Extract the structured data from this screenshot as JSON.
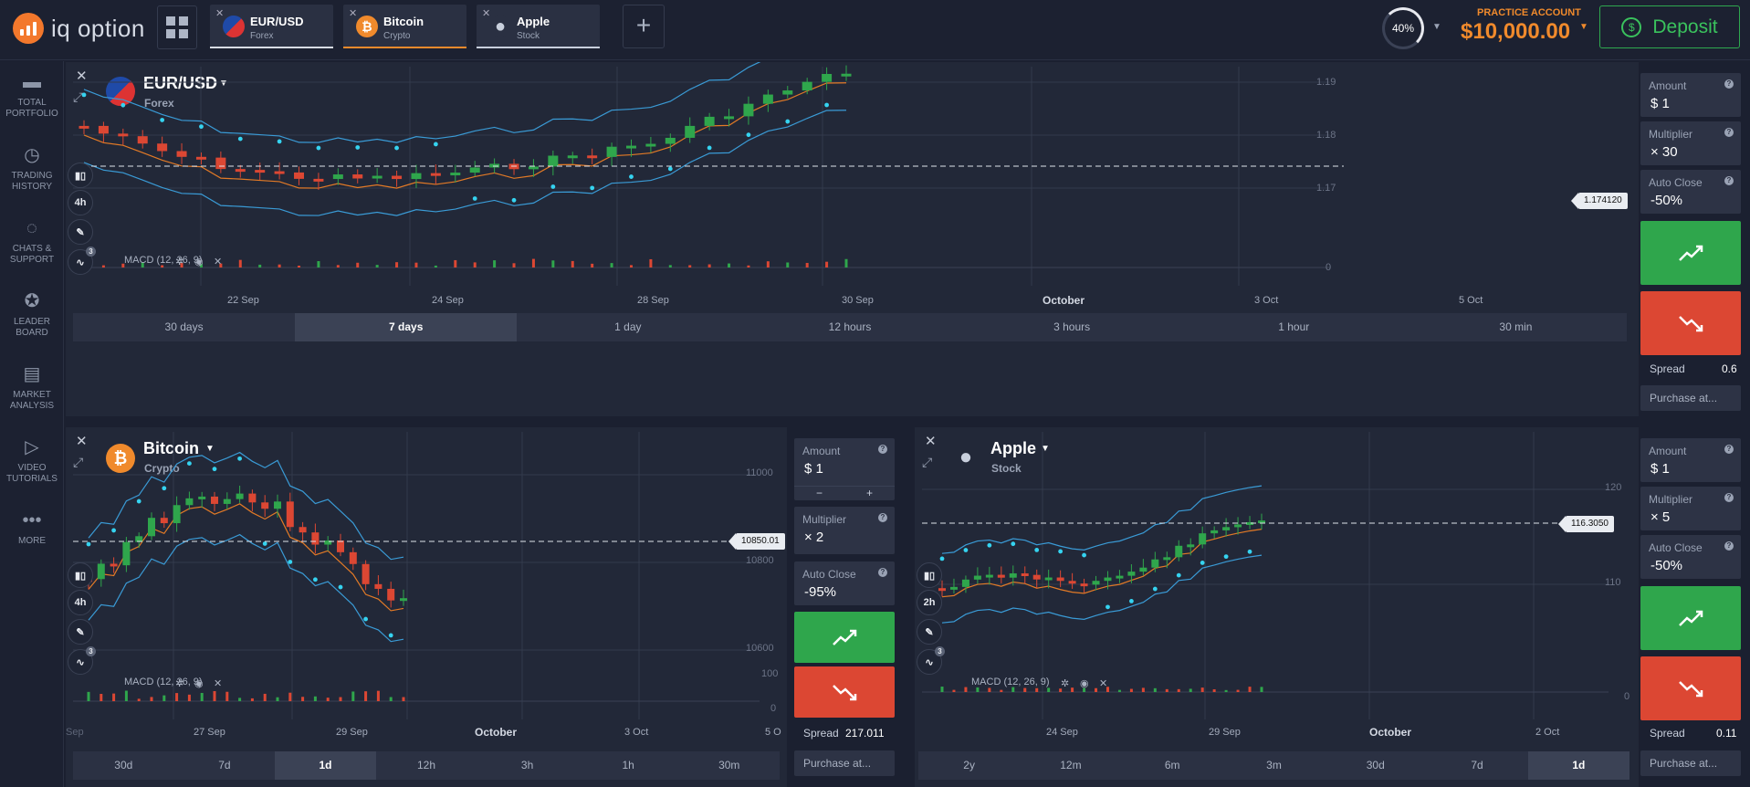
{
  "app": {
    "logo_text": "iq option"
  },
  "tabs": [
    {
      "name": "EUR/USD",
      "type": "Forex",
      "color": "#3f6fd6"
    },
    {
      "name": "Bitcoin",
      "type": "Crypto",
      "color": "#f08a2c"
    },
    {
      "name": "Apple",
      "type": "Stock",
      "color": "#8d96a8"
    }
  ],
  "header": {
    "progress_label": "40%",
    "progress_value": 0.4,
    "account_label": "PRACTICE ACCOUNT",
    "balance": "$10,000.00",
    "deposit_label": "Deposit"
  },
  "sidebar": {
    "items": [
      {
        "l1": "TOTAL",
        "l2": "PORTFOLIO",
        "icon": "briefcase-icon"
      },
      {
        "l1": "TRADING",
        "l2": "HISTORY",
        "icon": "history-icon"
      },
      {
        "l1": "CHATS &",
        "l2": "SUPPORT",
        "icon": "chat-icon"
      },
      {
        "l1": "LEADER",
        "l2": "BOARD",
        "icon": "medal-icon"
      },
      {
        "l1": "MARKET",
        "l2": "ANALYSIS",
        "icon": "newspaper-icon"
      },
      {
        "l1": "VIDEO",
        "l2": "TUTORIALS",
        "icon": "play-icon"
      },
      {
        "l1": "MORE",
        "l2": "",
        "icon": "more-icon"
      }
    ]
  },
  "panels": {
    "eurusd": {
      "name": "EUR/USD",
      "type": "Forex",
      "interval": "4h",
      "macd": "MACD (12, 26, 9)",
      "price": "1.174120",
      "y_labels": [
        "1.19",
        "1.18",
        "1.17",
        "0"
      ],
      "x_labels": [
        "22 Sep",
        "24 Sep",
        "28 Sep",
        "30 Sep",
        "October",
        "3 Oct",
        "5 Oct"
      ],
      "timeframes": [
        "30 days",
        "7 days",
        "1 day",
        "12 hours",
        "3 hours",
        "1 hour",
        "30 min"
      ],
      "active_tf": 1,
      "amount_label": "Amount",
      "amount": "$ 1",
      "mult_label": "Multiplier",
      "mult": "× 30",
      "auto_label": "Auto Close",
      "auto": "-50%",
      "spread_label": "Spread",
      "spread": "0.6",
      "purchase": "Purchase at..."
    },
    "bitcoin": {
      "name": "Bitcoin",
      "type": "Crypto",
      "interval": "4h",
      "macd": "MACD (12, 26, 9)",
      "price": "10850.01",
      "y_labels": [
        "11000",
        "10800",
        "10600",
        "100",
        "0"
      ],
      "x_labels": [
        "27 Sep",
        "29 Sep",
        "October",
        "3 Oct",
        "5 O"
      ],
      "x_cut": "Sep",
      "timeframes": [
        "30d",
        "7d",
        "1d",
        "12h",
        "3h",
        "1h",
        "30m"
      ],
      "active_tf": 2,
      "amount_label": "Amount",
      "amount": "$ 1",
      "step_minus": "−",
      "step_plus": "+",
      "mult_label": "Multiplier",
      "mult": "× 2",
      "auto_label": "Auto Close",
      "auto": "-95%",
      "spread_label": "Spread",
      "spread": "217.011",
      "purchase": "Purchase at..."
    },
    "apple": {
      "name": "Apple",
      "type": "Stock",
      "interval": "2h",
      "macd": "MACD (12, 26, 9)",
      "price": "116.3050",
      "y_labels": [
        "120",
        "110",
        "0"
      ],
      "x_labels": [
        "24 Sep",
        "29 Sep",
        "October",
        "2 Oct"
      ],
      "timeframes": [
        "2y",
        "12m",
        "6m",
        "3m",
        "30d",
        "7d",
        "1d"
      ],
      "active_tf": 6,
      "amount_label": "Amount",
      "amount": "$ 1",
      "mult_label": "Multiplier",
      "mult": "× 5",
      "auto_label": "Auto Close",
      "auto": "-50%",
      "spread_label": "Spread",
      "spread": "0.11",
      "purchase": "Purchase at..."
    }
  },
  "colors": {
    "up": "#2fa64c",
    "down": "#dc4733",
    "bb": "#3a9bd6",
    "ma": "#e37a26",
    "sar": "#35d3f0"
  }
}
